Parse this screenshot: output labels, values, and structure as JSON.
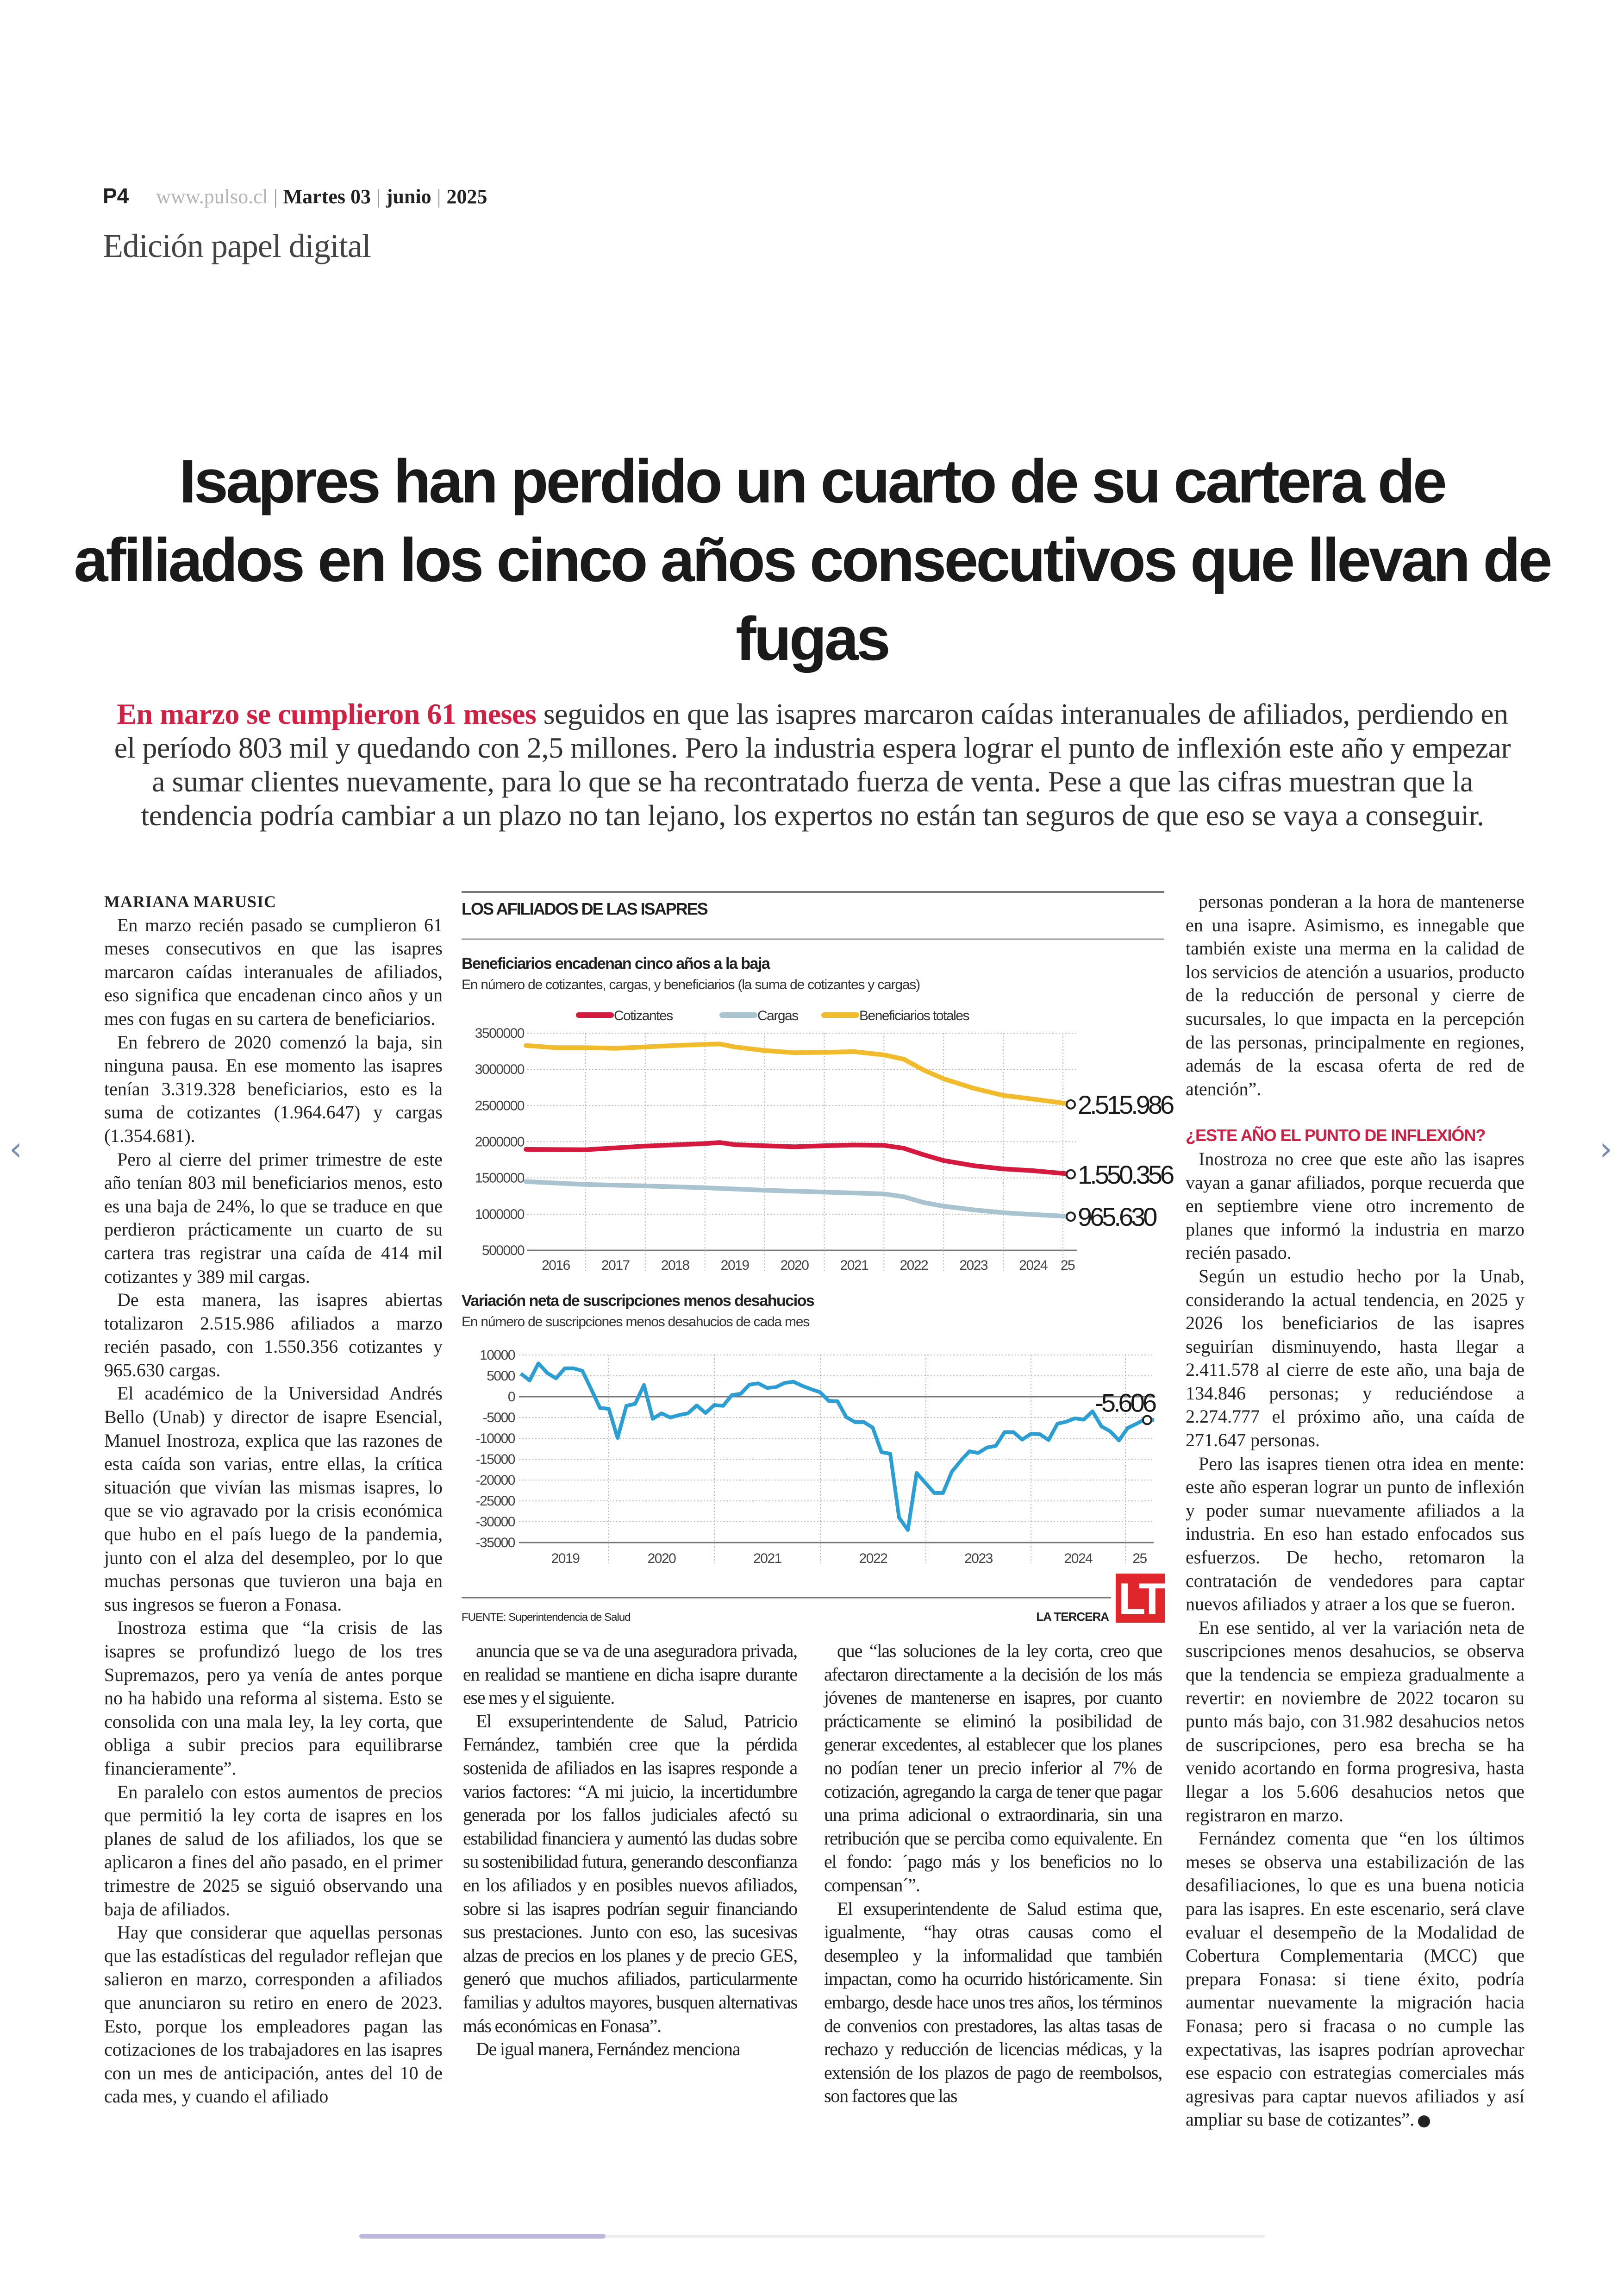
{
  "header": {
    "page": "P4",
    "url": "www.pulso.cl",
    "day": "Martes 03",
    "month": "junio",
    "year": "2025",
    "edition": "Edición papel digital"
  },
  "article": {
    "headline": "Isapres han perdido un cuarto de su cartera de afiliados en los cinco años consecutivos que llevan de fugas",
    "deck_highlight": "En marzo se cumplieron 61 meses",
    "deck_rest": " seguidos en que las isapres marcaron caídas interanuales de afiliados, perdiendo en el período 803 mil y quedando con 2,5 millones. Pero la industria espera lograr el punto de inflexión este año y empezar a sumar clientes nuevamente, para lo que se ha recontratado fuerza de venta. Pese a que las cifras muestran que la tendencia podría cambiar a un plazo no tan lejano, los expertos no están tan seguros de que eso se vaya a conseguir.",
    "author": "MARIANA MARUSIC",
    "col1": [
      "En marzo recién pasado se cumplieron 61 meses consecutivos en que las isapres marcaron caídas interanuales de afiliados, eso significa que encadenan cinco años y un mes con fugas en su cartera de beneficiarios.",
      "En febrero de 2020 comenzó la baja, sin ninguna pausa. En ese momento las isapres tenían 3.319.328 beneficiarios, esto es la suma de cotizantes (1.964.647) y cargas (1.354.681).",
      "Pero al cierre del primer trimestre de este año tenían 803 mil beneficiarios menos, esto es una baja de 24%, lo que se traduce en que perdieron prácticamente un cuarto de su cartera tras registrar una caída de 414 mil cotizantes y 389 mil cargas.",
      "De esta manera, las isapres abiertas totalizaron 2.515.986 afiliados a marzo recién pasado, con 1.550.356 cotizantes y 965.630 cargas.",
      "El académico de la Universidad Andrés Bello (Unab) y director de isapre Esencial, Manuel Inostroza, explica que las razones de esta caída son varias, entre ellas, la crítica situación que vivían las mismas isapres, lo que se vio agravado por la crisis económica que hubo en el país luego de la pandemia, junto con el alza del desempleo, por lo que muchas personas que tuvieron una baja en sus ingresos se fueron a Fonasa.",
      "Inostroza estima que “la crisis de las isapres se profundizó luego de los tres Supremazos, pero ya venía de antes porque no ha habido una reforma al sistema. Esto se consolida con una mala ley, la ley corta, que obliga a subir precios para equilibrarse financieramente”.",
      "En paralelo con estos aumentos de precios que permitió la ley corta de isapres en los planes de salud de los afiliados, los que se aplicaron a fines del año pasado, en el primer trimestre de 2025 se siguió observando una baja de afiliados.",
      "Hay que considerar que aquellas personas que las estadísticas del regulador reflejan que salieron en marzo, corresponden a afiliados que anunciaron su retiro en enero de 2023. Esto, porque los empleadores pagan las cotizaciones de los trabajadores en las isapres con un mes de anticipación, antes del 10 de cada mes, y cuando el afiliado"
    ],
    "col2": [
      "anuncia que se va de una aseguradora privada, en realidad se mantiene en dicha isapre durante ese mes y el siguiente.",
      "El exsuperintendente de Salud, Patricio Fernández, también cree que la pérdida sostenida de afiliados en las isapres responde a varios factores: “A mi juicio, la incertidumbre generada por los fallos judiciales afectó su estabilidad financiera y aumentó las dudas sobre su sostenibilidad futura, generando desconfianza en los afiliados y en posibles nuevos afiliados, sobre si las isapres podrían seguir financiando sus prestaciones. Junto con eso, las sucesivas alzas de precios en los planes y de precio GES, generó que muchos afiliados, particularmente familias y adultos mayores, busquen alternativas más económicas en Fonasa”.",
      "De igual manera, Fernández menciona"
    ],
    "col3": [
      "que “las soluciones de la ley corta, creo que afectaron directamente a la decisión de los más jóvenes de mantenerse en isapres, por cuanto prácticamente se eliminó la posibilidad de generar excedentes, al establecer que los planes no podían tener un precio inferior al 7% de cotización, agregando la carga de tener que pagar una prima adicional o extraordinaria, sin una retribución que se perciba como equivalente. En el fondo: ´pago más y los beneficios no lo compensan´”.",
      "El exsuperintendente de Salud estima que, igualmente, “hay otras causas como el desempleo y la informalidad que también impactan, como ha ocurrido históricamente. Sin embargo, desde hace unos tres años, los términos de convenios con prestadores, las altas tasas de rechazo y reducción de licencias médicas, y la extensión de los plazos de pago de reembolsos, son factores que las"
    ],
    "col4a": [
      "personas ponderan a la hora de mantenerse en una isapre. Asimismo, es innegable que también existe una merma en la calidad de los servicios de atención a usuarios, producto de la reducción de personal y cierre de sucursales, lo que impacta en la percepción de las personas, principalmente en regiones, además de la escasa oferta de red de atención”."
    ],
    "subhead": "¿ESTE AÑO EL PUNTO DE INFLEXIÓN?",
    "col4b": [
      "Inostroza no cree que este año las isapres vayan a ganar afiliados, porque recuerda que en septiembre viene otro incremento de planes que informó la industria en marzo recién pasado.",
      "Según un estudio hecho por la Unab, considerando la actual tendencia, en 2025 y 2026 los beneficiarios de las isapres seguirían disminuyendo, hasta llegar a 2.411.578 al cierre de este año, una baja de 134.846 personas; y reduciéndose a 2.274.777 el próximo año, una caída de 271.647 personas.",
      "Pero las isapres tienen otra idea en mente: este año esperan lograr un punto de inflexión y poder sumar nuevamente afiliados a la industria. En eso han estado enfocados sus esfuerzos. De hecho, retomaron la contratación de vendedores para captar nuevos afiliados y atraer a los que se fueron.",
      "En ese sentido, al ver la variación neta de suscripciones menos desahucios, se observa que la tendencia se empieza gradualmente a revertir: en noviembre de 2022 tocaron su punto más bajo, con 31.982 desahucios netos de suscripciones, pero esa brecha se ha venido acortando en forma progresiva, hasta llegar a los 5.606 desahucios netos que registraron en marzo.",
      "Fernández comenta que “en los últimos meses se observa una estabilización de las desafiliaciones, lo que es una buena noticia para las isapres. En este escenario, será clave evaluar el desempeño de la Modalidad de Cobertura Complementaria (MCC) que prepara Fonasa: si tiene éxito, podría aumentar nuevamente la migración hacia Fonasa; pero si fracasa o no cumple las expectativas, las isapres podrían aprovechar ese espacio con estrategias comerciales más agresivas para captar nuevos afiliados y así ampliar su base de cotizantes”."
    ],
    "accent_color": "#d31f43"
  },
  "infographic": {
    "title": "LOS AFILIADOS DE LAS ISAPRES",
    "source": "FUENTE: Superintendencia de Salud",
    "brand": "LA TERCERA",
    "logo": "LT",
    "logo_color": "#e0262b"
  },
  "chart_data": [
    {
      "type": "line",
      "title": "Beneficiarios encadenan cinco años a la baja",
      "subtitle": "En número de cotizantes, cargas, y beneficiarios (la suma de cotizantes y cargas)",
      "xlabel": "",
      "ylabel": "",
      "ylim": [
        500000,
        3500000
      ],
      "yticks": [
        "3500000",
        "3000000",
        "2500000",
        "2000000",
        "1500000",
        "1000000",
        "500000"
      ],
      "xticks": [
        "2016",
        "2017",
        "2018",
        "2019",
        "2020",
        "2021",
        "2022",
        "2023",
        "2024",
        "25"
      ],
      "grid": true,
      "legend": "top",
      "series": [
        {
          "name": "Cotizantes",
          "color": "#d7193f",
          "end_label": "1.550.356",
          "x": [
            "2016-01",
            "2017-01",
            "2018-01",
            "2019-01",
            "2019-04",
            "2019-07",
            "2020-01",
            "2020-07",
            "2021-01",
            "2021-07",
            "2022-01",
            "2022-05",
            "2022-09",
            "2023-01",
            "2023-07",
            "2024-01",
            "2024-07",
            "2025-03"
          ],
          "values": [
            1895000,
            1890000,
            1940000,
            1975000,
            1990000,
            1960000,
            1945000,
            1930000,
            1945000,
            1955000,
            1950000,
            1910000,
            1820000,
            1740000,
            1670000,
            1625000,
            1600000,
            1550356
          ]
        },
        {
          "name": "Cargas",
          "color": "#a9c3d0",
          "end_label": "965.630",
          "x": [
            "2016-01",
            "2017-01",
            "2018-01",
            "2019-01",
            "2020-01",
            "2021-01",
            "2022-01",
            "2022-05",
            "2022-09",
            "2023-01",
            "2023-07",
            "2024-01",
            "2024-07",
            "2025-03"
          ],
          "values": [
            1450000,
            1410000,
            1390000,
            1365000,
            1330000,
            1305000,
            1280000,
            1240000,
            1160000,
            1110000,
            1060000,
            1020000,
            995000,
            965630
          ]
        },
        {
          "name": "Beneficiarios totales",
          "color": "#f2bb2c",
          "end_label": "2.515.986",
          "x": [
            "2016-01",
            "2016-07",
            "2017-01",
            "2017-07",
            "2018-01",
            "2018-07",
            "2019-01",
            "2019-04",
            "2019-07",
            "2020-01",
            "2020-07",
            "2021-01",
            "2021-07",
            "2022-01",
            "2022-05",
            "2022-09",
            "2023-01",
            "2023-07",
            "2024-01",
            "2024-07",
            "2025-03"
          ],
          "values": [
            3330000,
            3300000,
            3300000,
            3290000,
            3310000,
            3330000,
            3345000,
            3350000,
            3310000,
            3260000,
            3230000,
            3235000,
            3245000,
            3200000,
            3140000,
            2990000,
            2870000,
            2740000,
            2640000,
            2590000,
            2515986
          ]
        }
      ]
    },
    {
      "type": "line",
      "title": "Variación neta de suscripciones menos desahucios",
      "subtitle": "En número de suscripciones menos desahucios de cada mes",
      "xlabel": "",
      "ylabel": "",
      "ylim": [
        -35000,
        10000
      ],
      "yticks": [
        "10000",
        "5000",
        "0",
        "-5000",
        "-10000",
        "-15000",
        "-20000",
        "-25000",
        "-30000",
        "-35000"
      ],
      "xticks": [
        "2019",
        "2020",
        "2021",
        "2022",
        "2023",
        "2024",
        "25"
      ],
      "grid": true,
      "series": [
        {
          "color": "#2b9fd3",
          "end_label": "-5.606",
          "x": [
            "2019-03",
            "2019-04",
            "2019-05",
            "2019-06",
            "2019-07",
            "2019-08",
            "2019-09",
            "2019-10",
            "2019-11",
            "2019-12",
            "2020-01",
            "2020-02",
            "2020-03",
            "2020-04",
            "2020-05",
            "2020-06",
            "2020-07",
            "2020-08",
            "2020-09",
            "2020-10",
            "2020-11",
            "2020-12",
            "2021-01",
            "2021-02",
            "2021-03",
            "2021-04",
            "2021-05",
            "2021-06",
            "2021-07",
            "2021-08",
            "2021-09",
            "2021-10",
            "2021-11",
            "2021-12",
            "2022-01",
            "2022-02",
            "2022-03",
            "2022-04",
            "2022-05",
            "2022-06",
            "2022-07",
            "2022-08",
            "2022-09",
            "2022-10",
            "2022-11",
            "2022-12",
            "2023-01",
            "2023-02",
            "2023-03",
            "2023-04",
            "2023-05",
            "2023-06",
            "2023-07",
            "2023-08",
            "2023-09",
            "2023-10",
            "2023-11",
            "2023-12",
            "2024-01",
            "2024-02",
            "2024-03",
            "2024-04",
            "2024-05",
            "2024-06",
            "2024-07",
            "2024-08",
            "2024-09",
            "2024-10",
            "2024-11",
            "2024-12",
            "2025-01",
            "2025-02",
            "2025-03"
          ],
          "values": [
            5550,
            3900,
            8000,
            5700,
            4400,
            6800,
            6800,
            6200,
            1800,
            -2700,
            -2900,
            -9900,
            -2200,
            -1700,
            2800,
            -5300,
            -4000,
            -5000,
            -4400,
            -4000,
            -2100,
            -3900,
            -2000,
            -2200,
            400,
            700,
            2900,
            3200,
            2100,
            2300,
            3300,
            3600,
            2600,
            1800,
            1100,
            -1000,
            -1100,
            -4900,
            -6100,
            -6100,
            -7400,
            -13300,
            -13700,
            -29000,
            -31982,
            -18300,
            -20700,
            -23100,
            -23100,
            -18000,
            -15400,
            -13100,
            -13500,
            -12200,
            -11800,
            -8500,
            -8500,
            -10300,
            -8900,
            -9000,
            -10400,
            -6500,
            -6000,
            -5200,
            -5500,
            -3500,
            -7100,
            -8300,
            -10500,
            -7500,
            -6500,
            -5300,
            -5606
          ]
        }
      ]
    }
  ]
}
